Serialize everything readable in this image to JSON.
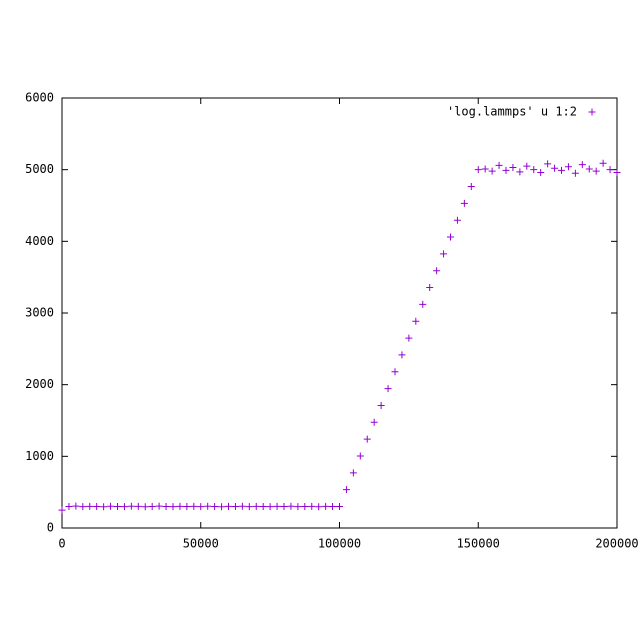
{
  "chart_data": {
    "type": "scatter",
    "series": [
      {
        "name": "'log.lammps' u 1:2",
        "color": "#9400d3",
        "x": [
          0,
          2500,
          5000,
          7500,
          10000,
          12500,
          15000,
          17500,
          20000,
          22500,
          25000,
          27500,
          30000,
          32500,
          35000,
          37500,
          40000,
          42500,
          45000,
          47500,
          50000,
          52500,
          55000,
          57500,
          60000,
          62500,
          65000,
          67500,
          70000,
          72500,
          75000,
          77500,
          80000,
          82500,
          85000,
          87500,
          90000,
          92500,
          95000,
          97500,
          100000,
          102500,
          105000,
          107500,
          110000,
          112500,
          115000,
          117500,
          120000,
          122500,
          125000,
          127500,
          130000,
          132500,
          135000,
          137500,
          140000,
          142500,
          145000,
          147500,
          150000,
          152500,
          155000,
          157500,
          160000,
          162500,
          165000,
          167500,
          170000,
          172500,
          175000,
          177500,
          180000,
          182500,
          185000,
          187500,
          190000,
          192500,
          195000,
          197500,
          200000
        ],
        "values": [
          250,
          300,
          305,
          298,
          302,
          300,
          296,
          304,
          300,
          299,
          303,
          301,
          297,
          300,
          305,
          300,
          298,
          302,
          300,
          301,
          299,
          303,
          300,
          297,
          302,
          300,
          304,
          299,
          301,
          300,
          298,
          302,
          300,
          303,
          299,
          300,
          301,
          297,
          302,
          300,
          300,
          535,
          770,
          1005,
          1240,
          1475,
          1710,
          1945,
          2180,
          2415,
          2650,
          2885,
          3120,
          3355,
          3590,
          3825,
          4060,
          4295,
          4530,
          4765,
          5000,
          5010,
          4980,
          5060,
          4990,
          5030,
          4970,
          5050,
          5000,
          4960,
          5080,
          5020,
          4990,
          5040,
          4950,
          5070,
          5010,
          4980,
          5090,
          5000,
          4960
        ]
      }
    ],
    "xlim": [
      0,
      200000
    ],
    "xticks": [
      0,
      50000,
      100000,
      150000,
      200000
    ],
    "ylim": [
      0,
      6000
    ],
    "yticks": [
      0,
      1000,
      2000,
      3000,
      4000,
      5000,
      6000
    ],
    "grid": false,
    "legend": "top-right"
  }
}
